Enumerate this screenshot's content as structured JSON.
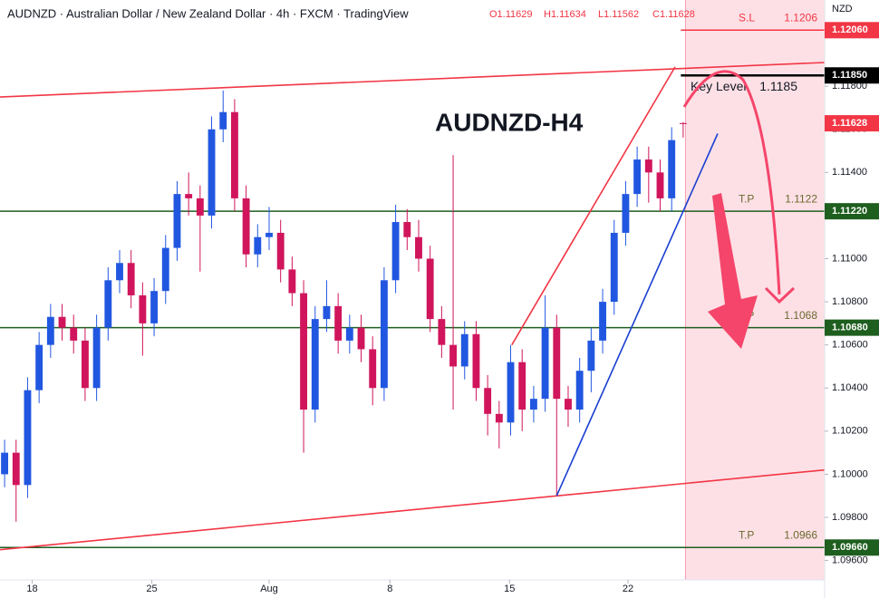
{
  "chart_data": {
    "type": "candlestick",
    "title": "AUDNZD-H4",
    "header": "AUDNZD · Australian Dollar / New Zealand Dollar · 4h · FXCM · TradingView",
    "header_ohlc": [
      {
        "value": 1.11629,
        "label": "O1.11629"
      },
      {
        "value": 1.11634,
        "label": "H1.11634"
      },
      {
        "value": 1.11562,
        "label": "L1.11562"
      },
      {
        "value": 1.11628,
        "label": "C1.11628"
      }
    ],
    "currency": "NZD",
    "up_color": "#2157e0",
    "down_color": "#d0155c",
    "xlim": [
      -0.4,
      71.3
    ],
    "ylim": [
      1.0951,
      1.122
    ],
    "xticks": [
      {
        "value": 2.4,
        "label": "18"
      },
      {
        "value": 12.8,
        "label": "25"
      },
      {
        "value": 23.0,
        "label": "Aug"
      },
      {
        "value": 33.5,
        "label": "8"
      },
      {
        "value": 43.9,
        "label": "15"
      },
      {
        "value": 54.2,
        "label": "22"
      }
    ],
    "yticks": [
      {
        "value": 1.096,
        "label": "1.09600"
      },
      {
        "value": 1.098,
        "label": "1.09800"
      },
      {
        "value": 1.1,
        "label": "1.10000"
      },
      {
        "value": 1.102,
        "label": "1.10200"
      },
      {
        "value": 1.104,
        "label": "1.10400"
      },
      {
        "value": 1.106,
        "label": "1.10600"
      },
      {
        "value": 1.108,
        "label": "1.10800"
      },
      {
        "value": 1.11,
        "label": "1.11000"
      },
      {
        "value": 1.114,
        "label": "1.11400"
      },
      {
        "value": 1.116,
        "label": "1.11600"
      },
      {
        "value": 1.118,
        "label": "1.11800"
      }
    ],
    "open": [
      1.1,
      1.101,
      1.0995,
      1.1039,
      1.106,
      1.1073,
      1.1068,
      1.1062,
      1.104,
      1.1068,
      1.109,
      1.1098,
      1.1083,
      1.107,
      1.1085,
      1.1105,
      1.113,
      1.1128,
      1.112,
      1.116,
      1.1168,
      1.1128,
      1.1102,
      1.111,
      1.1112,
      1.1095,
      1.1084,
      1.103,
      1.1072,
      1.1078,
      1.1062,
      1.1068,
      1.1058,
      1.104,
      1.109,
      1.1117,
      1.111,
      1.11,
      1.1072,
      1.106,
      1.105,
      1.1065,
      1.104,
      1.1028,
      1.1024,
      1.1052,
      1.103,
      1.1035,
      1.1068,
      1.1035,
      1.103,
      1.1048,
      1.1062,
      1.108,
      1.1112,
      1.113,
      1.1146,
      1.114,
      1.1128,
      1.11629
    ],
    "high": [
      1.1016,
      1.1016,
      1.1045,
      1.1066,
      1.1079,
      1.1079,
      1.1074,
      1.1068,
      1.1074,
      1.1096,
      1.1104,
      1.1104,
      1.1089,
      1.1091,
      1.1111,
      1.1136,
      1.114,
      1.1134,
      1.1166,
      1.1178,
      1.1174,
      1.1134,
      1.1116,
      1.1124,
      1.1118,
      1.1101,
      1.109,
      1.1078,
      1.109,
      1.1084,
      1.1074,
      1.1074,
      1.1064,
      1.1096,
      1.1125,
      1.1123,
      1.1118,
      1.1106,
      1.1078,
      1.1148,
      1.1071,
      1.1071,
      1.1046,
      1.1034,
      1.106,
      1.1058,
      1.1041,
      1.1083,
      1.1074,
      1.1041,
      1.1054,
      1.1068,
      1.1086,
      1.1118,
      1.1136,
      1.1152,
      1.1152,
      1.1146,
      1.1161,
      1.11634
    ],
    "low": [
      1.0994,
      1.0978,
      1.0989,
      1.1033,
      1.1054,
      1.1062,
      1.1056,
      1.1034,
      1.1034,
      1.1062,
      1.1084,
      1.1077,
      1.1055,
      1.1064,
      1.1079,
      1.1099,
      1.112,
      1.1094,
      1.1114,
      1.1154,
      1.1122,
      1.1096,
      1.1096,
      1.1104,
      1.1089,
      1.1078,
      1.101,
      1.1024,
      1.1066,
      1.1056,
      1.1056,
      1.1052,
      1.1032,
      1.1034,
      1.1084,
      1.1104,
      1.1094,
      1.1066,
      1.1054,
      1.103,
      1.1044,
      1.1034,
      1.1018,
      1.1012,
      1.1018,
      1.102,
      1.1024,
      1.1029,
      1.099,
      1.1022,
      1.1024,
      1.1038,
      1.1056,
      1.1074,
      1.1106,
      1.1124,
      1.1126,
      1.1122,
      1.1122,
      1.11562
    ],
    "close": [
      1.101,
      1.0995,
      1.1039,
      1.106,
      1.1073,
      1.1068,
      1.1062,
      1.104,
      1.1068,
      1.109,
      1.1098,
      1.1083,
      1.107,
      1.1085,
      1.1105,
      1.113,
      1.1128,
      1.112,
      1.116,
      1.1168,
      1.1128,
      1.1102,
      1.111,
      1.1112,
      1.1095,
      1.1084,
      1.103,
      1.1072,
      1.1078,
      1.1062,
      1.1068,
      1.1058,
      1.104,
      1.109,
      1.1117,
      1.111,
      1.11,
      1.1072,
      1.106,
      1.105,
      1.1065,
      1.104,
      1.1028,
      1.1024,
      1.1052,
      1.103,
      1.1035,
      1.1068,
      1.1035,
      1.103,
      1.1048,
      1.1062,
      1.108,
      1.1112,
      1.113,
      1.1146,
      1.114,
      1.1128,
      1.1155,
      1.11628
    ],
    "last_price": {
      "value": 1.11628,
      "label": "1.11628",
      "color": "#f23645"
    },
    "zone": {
      "from": 59.2,
      "to": 71.3,
      "color": "#fde0e6"
    },
    "levels": [
      {
        "name": "S.L",
        "value": 1.1206,
        "label": "1.1206",
        "axis_label": "1.12060",
        "color": "#f23645",
        "text_color": "#f23645",
        "from": 58.8
      },
      {
        "name": "Key Level",
        "value": 1.1185,
        "label": "1.1185",
        "axis_label": "1.11850",
        "color": "#000000",
        "text_color": "#131722",
        "from": 58.8
      },
      {
        "name": "T.P",
        "value": 1.1122,
        "label": "1.1122",
        "axis_label": "1.11220",
        "color": "#1e5e1e",
        "text_color": "#6b6a2e",
        "from": -0.4
      },
      {
        "name": "T.P",
        "value": 1.1068,
        "label": "1.1068",
        "axis_label": "1.10680",
        "color": "#1e5e1e",
        "text_color": "#6b6a2e",
        "from": -0.4
      },
      {
        "name": "T.P",
        "value": 1.0966,
        "label": "1.0966",
        "axis_label": "1.09660",
        "color": "#1e5e1e",
        "text_color": "#6b6a2e",
        "from": -0.4
      }
    ],
    "trendlines": [
      {
        "points": [
          [
            -0.4,
            1.1175
          ],
          [
            71.3,
            1.1191
          ]
        ],
        "color": "#f23645"
      },
      {
        "points": [
          [
            -0.4,
            1.0965
          ],
          [
            71.3,
            1.1002
          ]
        ],
        "color": "#f23645"
      },
      {
        "points": [
          [
            44.1,
            1.106
          ],
          [
            58.3,
            1.1189
          ]
        ],
        "color": "#f23645"
      },
      {
        "points": [
          [
            48.0,
            1.099
          ],
          [
            62.0,
            1.1158
          ]
        ],
        "color": "#1a3fd1"
      }
    ]
  }
}
